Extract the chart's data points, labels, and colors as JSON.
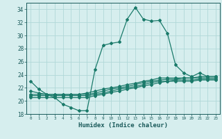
{
  "title": "",
  "xlabel": "Humidex (Indice chaleur)",
  "ylabel": "",
  "bg_color": "#d6eeee",
  "grid_color": "#b0d8d8",
  "line_color": "#1a7a6a",
  "xlim": [
    -0.5,
    23.5
  ],
  "ylim": [
    18,
    35
  ],
  "yticks": [
    18,
    20,
    22,
    24,
    26,
    28,
    30,
    32,
    34
  ],
  "xtick_labels": [
    "0",
    "1",
    "2",
    "3",
    "4",
    "5",
    "6",
    "7",
    "8",
    "9",
    "10",
    "11",
    "12",
    "13",
    "14",
    "15",
    "16",
    "17",
    "18",
    "19",
    "20",
    "21",
    "22",
    "23"
  ],
  "xticks": [
    0,
    1,
    2,
    3,
    4,
    5,
    6,
    7,
    8,
    9,
    10,
    11,
    12,
    13,
    14,
    15,
    16,
    17,
    18,
    19,
    20,
    21,
    22,
    23
  ],
  "lines": [
    [
      23.0,
      21.8,
      21.0,
      20.5,
      19.5,
      19.0,
      18.5,
      18.5,
      24.8,
      28.5,
      28.8,
      29.0,
      32.5,
      34.3,
      32.5,
      32.2,
      32.3,
      30.3,
      25.5,
      24.3,
      23.7,
      24.3,
      23.7,
      23.7
    ],
    [
      21.5,
      21.2,
      21.0,
      21.0,
      21.0,
      21.0,
      21.0,
      21.2,
      21.5,
      21.8,
      22.0,
      22.2,
      22.5,
      22.7,
      23.0,
      23.2,
      23.5,
      23.5,
      23.5,
      23.5,
      23.5,
      23.7,
      23.7,
      23.7
    ],
    [
      21.0,
      21.0,
      21.0,
      21.0,
      21.0,
      21.0,
      21.0,
      21.0,
      21.2,
      21.5,
      21.8,
      22.0,
      22.2,
      22.5,
      22.8,
      23.0,
      23.2,
      23.3,
      23.3,
      23.5,
      23.5,
      23.5,
      23.5,
      23.5
    ],
    [
      20.8,
      20.8,
      20.8,
      20.8,
      20.8,
      20.8,
      20.8,
      20.8,
      21.0,
      21.2,
      21.5,
      21.8,
      22.0,
      22.2,
      22.5,
      22.8,
      23.0,
      23.0,
      23.2,
      23.2,
      23.2,
      23.3,
      23.3,
      23.3
    ],
    [
      20.5,
      20.5,
      20.5,
      20.5,
      20.5,
      20.5,
      20.5,
      20.5,
      20.8,
      21.0,
      21.3,
      21.5,
      21.8,
      22.0,
      22.3,
      22.5,
      22.8,
      23.0,
      23.0,
      23.0,
      23.0,
      23.2,
      23.2,
      23.2
    ]
  ]
}
